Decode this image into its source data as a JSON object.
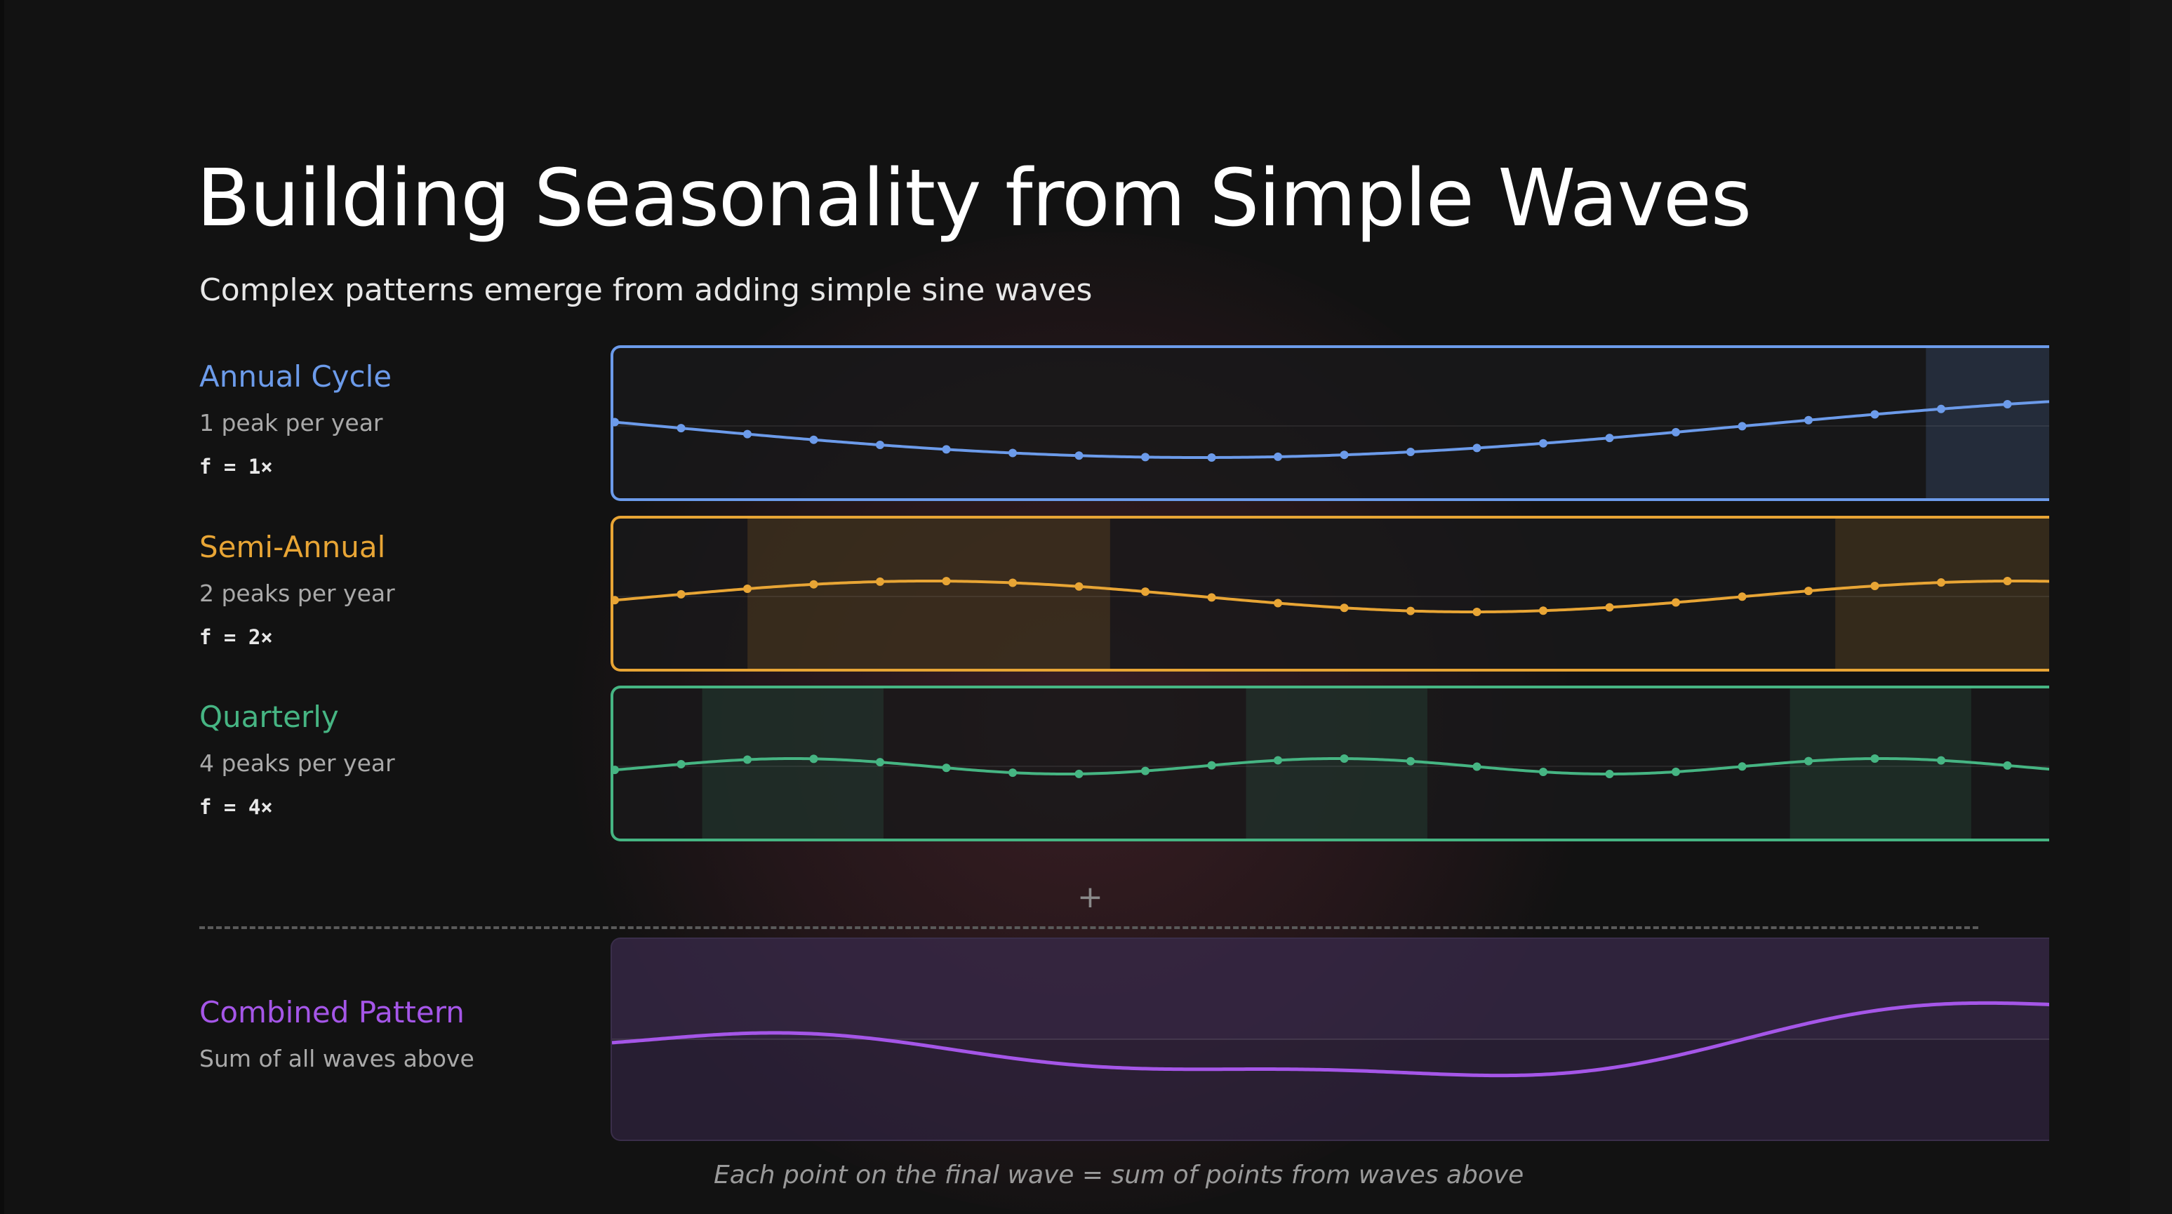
{
  "title": "Building Seasonality from Simple Waves",
  "subtitle": "Complex patterns emerge from adding simple sine waves",
  "footnote": "Each point on the final wave = sum of points from waves above",
  "chart_data": {
    "type": "line",
    "series": [
      {
        "name": "Annual Cycle",
        "description": "1 peak per year",
        "freq_label": "f = 1×",
        "frequency": 1,
        "color": "#6c9bea",
        "peak_fill": "rgba(108,155,234,0.16)"
      },
      {
        "name": "Semi-Annual",
        "description": "2 peaks per year",
        "freq_label": "f = 2×",
        "frequency": 2,
        "color": "#e8a535",
        "peak_fill": "rgba(232,165,53,0.14)"
      },
      {
        "name": "Quarterly",
        "description": "4 peaks per year",
        "freq_label": "f = 4×",
        "frequency": 4,
        "color": "#46b583",
        "peak_fill": "rgba(70,181,131,0.13)"
      }
    ],
    "combined": {
      "name": "Combined Pattern",
      "description": "Sum of all waves above",
      "color": "#a556e8"
    }
  }
}
